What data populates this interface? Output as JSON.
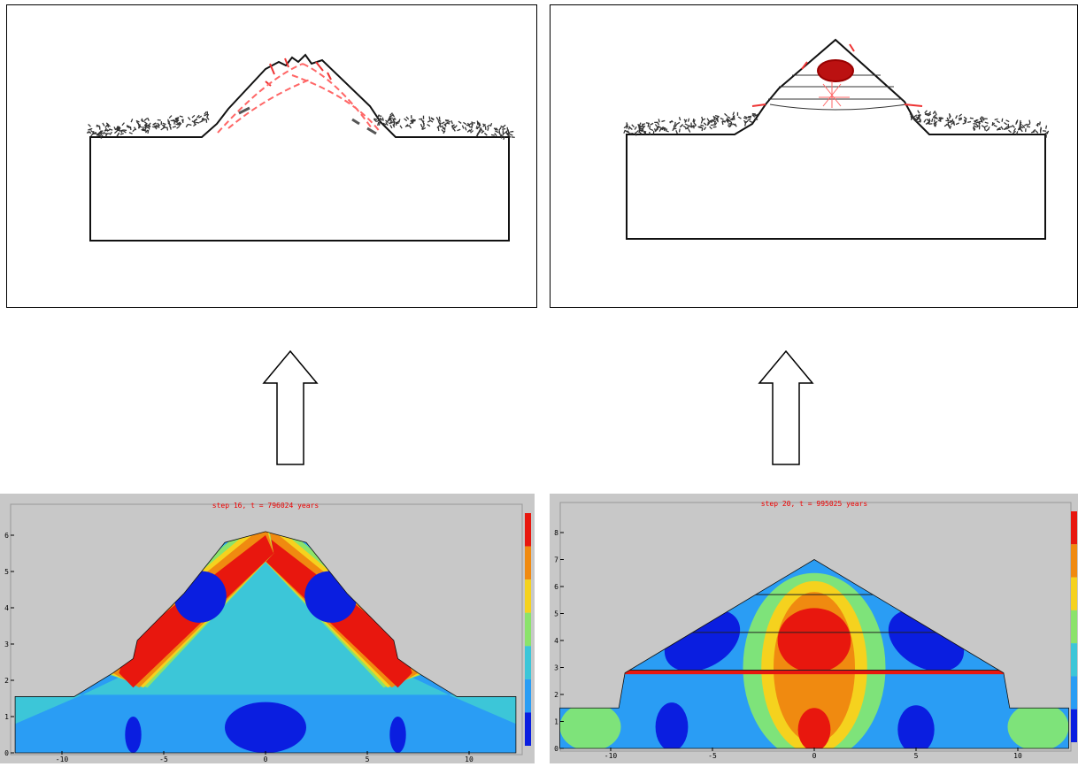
{
  "panels": [
    {
      "title": "step 16, t = 796024 years",
      "xticks": [
        -10,
        -5,
        0,
        5,
        10
      ],
      "yticks": [
        0,
        1,
        2,
        3,
        4,
        5,
        6
      ]
    },
    {
      "title": "step 20, t = 995025 years",
      "xticks": [
        -10,
        -5,
        0,
        5,
        10
      ],
      "yticks": [
        0,
        1,
        2,
        3,
        4,
        5,
        6,
        7,
        8
      ]
    }
  ]
}
